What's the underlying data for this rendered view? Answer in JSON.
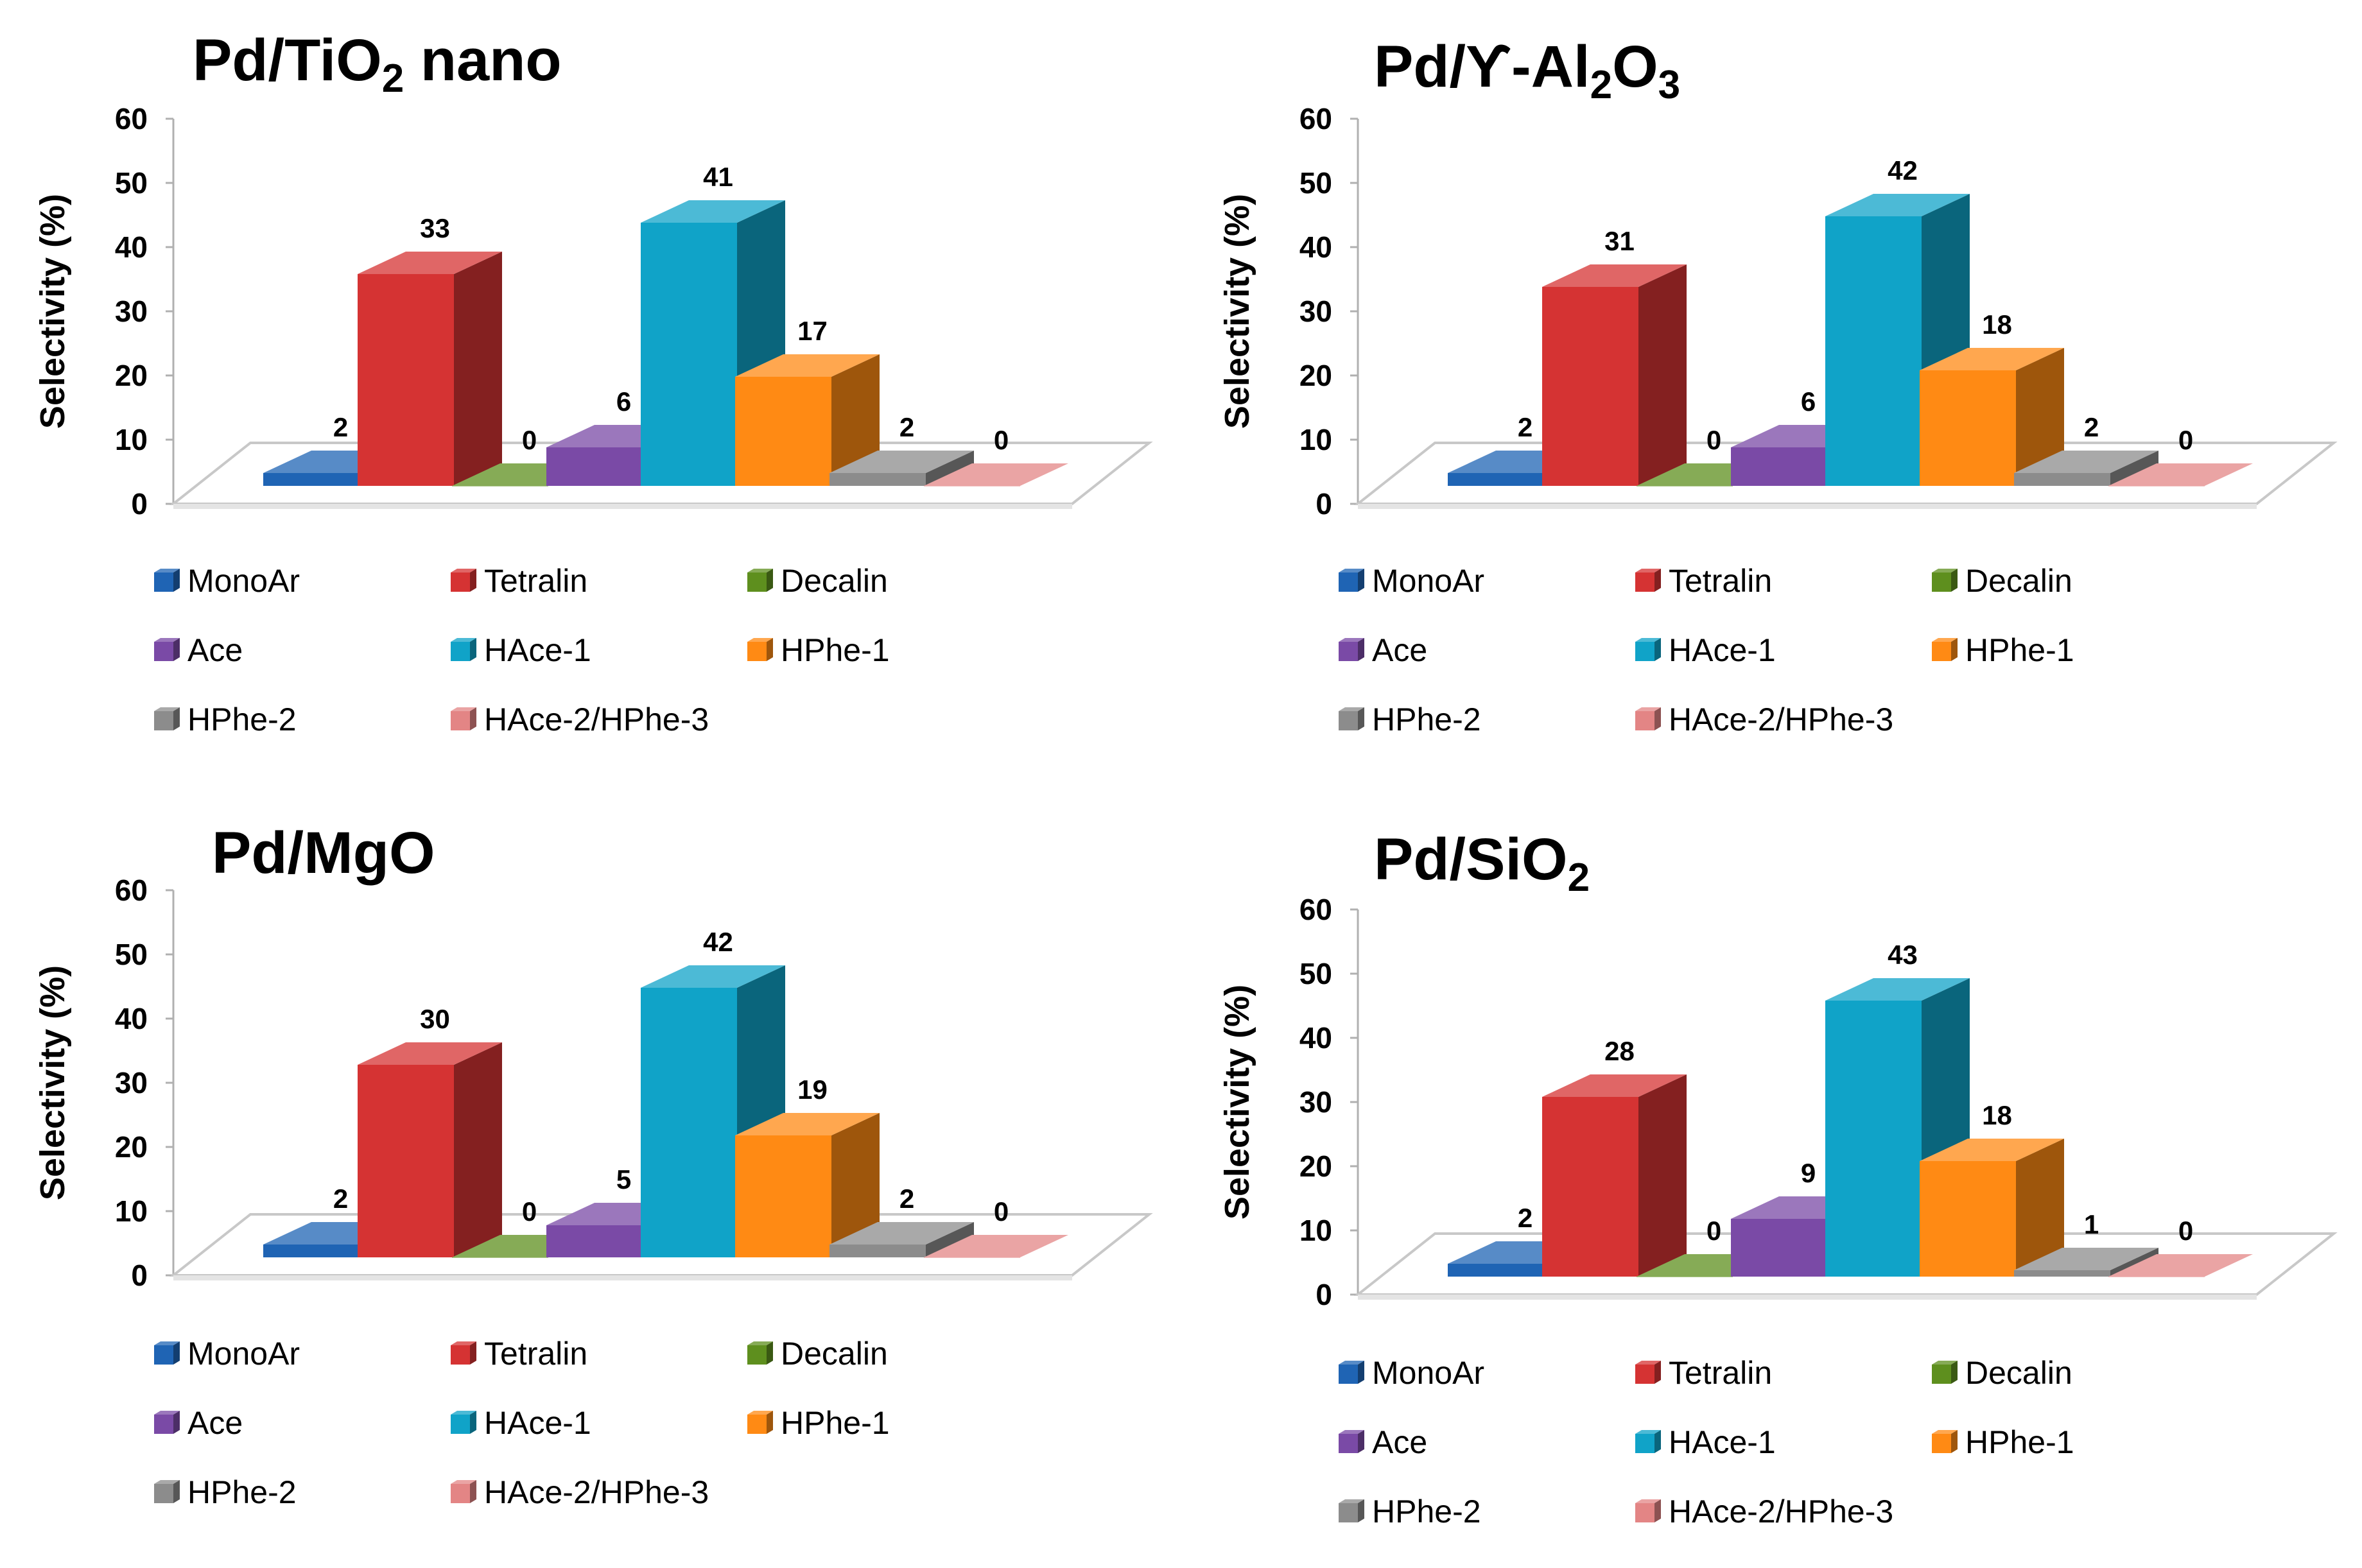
{
  "series_colors": {
    "MonoAr": "#1f64b4",
    "Tetralin": "#d53333",
    "Decalin": "#5e8f1e",
    "Ace": "#7a4aa6",
    "HAce-1": "#10a3c8",
    "HPhe-1": "#ff8a14",
    "HPhe-2": "#8c8c8c",
    "HAce-2/HPhe-3": "#e38585"
  },
  "chart_data": [
    {
      "type": "bar",
      "title": "Pd/TiO2 nano",
      "title_parts": [
        {
          "t": "Pd/TiO",
          "sub": false
        },
        {
          "t": "2",
          "sub": true
        },
        {
          "t": " nano",
          "sub": false
        }
      ],
      "ylabel": "Selectivity (%)",
      "ylim": [
        0,
        60
      ],
      "yticks": [
        "0",
        "10",
        "20",
        "30",
        "40",
        "50",
        "60"
      ],
      "categories": [
        "MonoAr",
        "Tetralin",
        "Decalin",
        "Ace",
        "HAce-1",
        "HPhe-1",
        "HPhe-2",
        "HAce-2/HPhe-3"
      ],
      "values": [
        2,
        33,
        0,
        6,
        41,
        17,
        2,
        0
      ],
      "labels": [
        "2",
        "33",
        "0",
        "6",
        "41",
        "17",
        "2",
        "0"
      ],
      "legend": [
        "MonoAr",
        "Tetralin",
        "Decalin",
        "Ace",
        "HAce-1",
        "HPhe-1",
        "HPhe-2",
        "HAce-2/HPhe-3"
      ]
    },
    {
      "type": "bar",
      "title": "Pd/ϒ-Al2O3",
      "title_parts": [
        {
          "t": "Pd/ϒ-Al",
          "sub": false
        },
        {
          "t": "2",
          "sub": true
        },
        {
          "t": "O",
          "sub": false
        },
        {
          "t": "3",
          "sub": true
        }
      ],
      "ylabel": "Selectivity (%)",
      "ylim": [
        0,
        60
      ],
      "yticks": [
        "0",
        "10",
        "20",
        "30",
        "40",
        "50",
        "60"
      ],
      "categories": [
        "MonoAr",
        "Tetralin",
        "Decalin",
        "Ace",
        "HAce-1",
        "HPhe-1",
        "HPhe-2",
        "HAce-2/HPhe-3"
      ],
      "values": [
        2,
        31,
        0,
        6,
        42,
        18,
        2,
        0
      ],
      "labels": [
        "2",
        "31",
        "0",
        "6",
        "42",
        "18",
        "2",
        "0"
      ],
      "legend": [
        "MonoAr",
        "Tetralin",
        "Decalin",
        "Ace",
        "HAce-1",
        "HPhe-1",
        "HPhe-2",
        "HAce-2/HPhe-3"
      ]
    },
    {
      "type": "bar",
      "title": "Pd/MgO",
      "title_parts": [
        {
          "t": "Pd/MgO",
          "sub": false
        }
      ],
      "ylabel": "Selectivity (%)",
      "ylim": [
        0,
        60
      ],
      "yticks": [
        "0",
        "10",
        "20",
        "30",
        "40",
        "50",
        "60"
      ],
      "categories": [
        "MonoAr",
        "Tetralin",
        "Decalin",
        "Ace",
        "HAce-1",
        "HPhe-1",
        "HPhe-2",
        "HAce-2/HPhe-3"
      ],
      "values": [
        2,
        30,
        0,
        5,
        42,
        19,
        2,
        0
      ],
      "labels": [
        "2",
        "30",
        "0",
        "5",
        "42",
        "19",
        "2",
        "0"
      ],
      "legend": [
        "MonoAr",
        "Tetralin",
        "Decalin",
        "Ace",
        "HAce-1",
        "HPhe-1",
        "HPhe-2",
        "HAce-2/HPhe-3"
      ]
    },
    {
      "type": "bar",
      "title": "Pd/SiO2",
      "title_parts": [
        {
          "t": "Pd/SiO",
          "sub": false
        },
        {
          "t": "2",
          "sub": true
        }
      ],
      "ylabel": "Selectivity (%)",
      "ylim": [
        0,
        60
      ],
      "yticks": [
        "0",
        "10",
        "20",
        "30",
        "40",
        "50",
        "60"
      ],
      "categories": [
        "MonoAr",
        "Tetralin",
        "Decalin",
        "Ace",
        "HAce-1",
        "HPhe-1",
        "HPhe-2",
        "HAce-2/HPhe-3"
      ],
      "values": [
        2,
        28,
        0,
        9,
        43,
        18,
        1,
        0
      ],
      "labels": [
        "2",
        "28",
        "0",
        "9",
        "43",
        "18",
        "1",
        "0"
      ],
      "legend": [
        "MonoAr",
        "Tetralin",
        "Decalin",
        "Ace",
        "HAce-1",
        "HPhe-1",
        "HPhe-2",
        "HAce-2/HPhe-3"
      ]
    }
  ]
}
